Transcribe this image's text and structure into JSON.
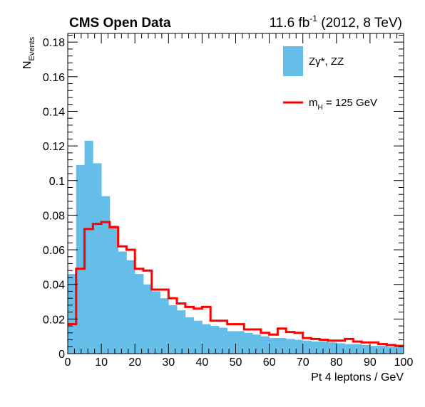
{
  "header": {
    "left": "CMS Open Data",
    "lumi_value": "11.6 fb",
    "lumi_exp": "-1",
    "lumi_rest": " (2012, 8 TeV)"
  },
  "legend": [
    {
      "kind": "fill",
      "label_main": "Zγ*, ZZ",
      "label_sub": "",
      "label_tail": "",
      "color": "#64BEE8"
    },
    {
      "kind": "line",
      "label_main": "m",
      "label_sub": "H",
      "label_tail": " = 125 GeV",
      "color": "#FF0000"
    }
  ],
  "chart_data": {
    "type": "histogram",
    "xlabel": "Pt 4 leptons / GeV",
    "ylabel_main": "N",
    "ylabel_sub": "Events",
    "xlim": [
      0,
      100
    ],
    "ylim": [
      0,
      0.185
    ],
    "x_major_ticks": [
      0,
      10,
      20,
      30,
      40,
      50,
      60,
      70,
      80,
      90,
      100
    ],
    "y_major_ticks": [
      0,
      0.02,
      0.04,
      0.06,
      0.08,
      0.1,
      0.12,
      0.14,
      0.16,
      0.18
    ],
    "x_tick_labels": [
      "0",
      "10",
      "20",
      "30",
      "40",
      "50",
      "60",
      "70",
      "80",
      "90",
      "100"
    ],
    "y_tick_labels": [
      "0",
      "0.02",
      "0.04",
      "0.06",
      "0.08",
      "0.1",
      "0.12",
      "0.14",
      "0.16",
      "0.18"
    ],
    "bin_edges": [
      0,
      2.5,
      5,
      7.5,
      10,
      12.5,
      15,
      17.5,
      20,
      22.5,
      25,
      27.5,
      30,
      32.5,
      35,
      37.5,
      40,
      42.5,
      45,
      47.5,
      50,
      52.5,
      55,
      57.5,
      60,
      62.5,
      65,
      67.5,
      70,
      72.5,
      75,
      77.5,
      80,
      82.5,
      85,
      87.5,
      90,
      92.5,
      95,
      97.5,
      100
    ],
    "series": [
      {
        "name": "Zγ*, ZZ",
        "style": "filled",
        "color": "#64BEE8",
        "values": [
          0.046,
          0.109,
          0.123,
          0.11,
          0.091,
          0.074,
          0.059,
          0.054,
          0.046,
          0.04,
          0.036,
          0.032,
          0.028,
          0.025,
          0.021,
          0.019,
          0.017,
          0.016,
          0.015,
          0.013,
          0.013,
          0.012,
          0.011,
          0.01,
          0.009,
          0.009,
          0.0085,
          0.008,
          0.0075,
          0.007,
          0.007,
          0.0065,
          0.006,
          0.0055,
          0.0055,
          0.005,
          0.0045,
          0.0045,
          0.004,
          0.004
        ]
      },
      {
        "name": "m_H = 125 GeV",
        "style": "step-line",
        "color": "#FF0000",
        "values": [
          0.017,
          0.049,
          0.072,
          0.075,
          0.076,
          0.073,
          0.062,
          0.06,
          0.049,
          0.048,
          0.037,
          0.037,
          0.032,
          0.029,
          0.027,
          0.026,
          0.027,
          0.019,
          0.019,
          0.017,
          0.017,
          0.014,
          0.014,
          0.012,
          0.011,
          0.0145,
          0.0125,
          0.012,
          0.009,
          0.0085,
          0.008,
          0.0075,
          0.0075,
          0.0085,
          0.007,
          0.0065,
          0.0065,
          0.0055,
          0.005,
          0.0045
        ]
      }
    ]
  }
}
